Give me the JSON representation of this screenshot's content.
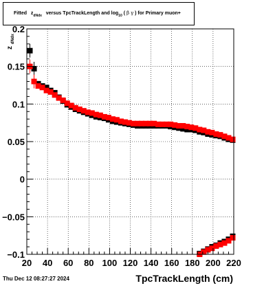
{
  "window": {
    "title_parts": {
      "prefix": "Fitted",
      "zvar": "z",
      "zsub": "dNdx",
      "middle": "versus TpcTrackLength and log",
      "logsub": "10",
      "lparen": "(",
      "beta": "β",
      "gamma": "γ",
      "rparen": ")",
      "suffix": "for Primary muon+"
    },
    "date": "Thu Dec 12 08:27:27 2024"
  },
  "chart_data": {
    "type": "scatter",
    "title": "Fitted z_dNdx versus TpcTrackLength and log_10 (β γ) for Primary muon+",
    "xlabel": "TpcTrackLength (cm)",
    "ylabel": "z",
    "ylabel_sub": "dNdx",
    "xlim": [
      20,
      220
    ],
    "ylim": [
      -0.1,
      0.2
    ],
    "x_ticks": [
      20,
      40,
      60,
      80,
      100,
      120,
      140,
      160,
      180,
      200,
      220
    ],
    "x_tick_labels": [
      "20",
      "40",
      "60",
      "80",
      "100",
      "120",
      "140",
      "160",
      "180",
      "200",
      "220"
    ],
    "y_ticks": [
      -0.1,
      -0.05,
      0,
      0.05,
      0.1,
      0.15,
      0.2
    ],
    "y_tick_labels": [
      "−0.1",
      "−0.05",
      "0",
      "0.05",
      "0.1",
      "0.15",
      "0.2"
    ],
    "grid": true,
    "series": [
      {
        "color": "#000000",
        "marker": "square",
        "points": [
          [
            23,
            0.171
          ],
          [
            27,
            0.147
          ],
          [
            31,
            0.127
          ],
          [
            35,
            0.124
          ],
          [
            39,
            0.122
          ],
          [
            43,
            0.118
          ],
          [
            47,
            0.115
          ],
          [
            51,
            0.109
          ],
          [
            55,
            0.104
          ],
          [
            59,
            0.099
          ],
          [
            63,
            0.096
          ],
          [
            67,
            0.093
          ],
          [
            71,
            0.091
          ],
          [
            75,
            0.089
          ],
          [
            79,
            0.087
          ],
          [
            83,
            0.085
          ],
          [
            87,
            0.083
          ],
          [
            91,
            0.082
          ],
          [
            95,
            0.081
          ],
          [
            99,
            0.079
          ],
          [
            103,
            0.077
          ],
          [
            107,
            0.076
          ],
          [
            111,
            0.075
          ],
          [
            115,
            0.074
          ],
          [
            119,
            0.073
          ],
          [
            123,
            0.072
          ],
          [
            127,
            0.071
          ],
          [
            131,
            0.071
          ],
          [
            135,
            0.071
          ],
          [
            139,
            0.071
          ],
          [
            143,
            0.071
          ],
          [
            147,
            0.071
          ],
          [
            151,
            0.071
          ],
          [
            155,
            0.071
          ],
          [
            159,
            0.07
          ],
          [
            163,
            0.069
          ],
          [
            167,
            0.068
          ],
          [
            171,
            0.067
          ],
          [
            175,
            0.066
          ],
          [
            179,
            0.066
          ],
          [
            183,
            0.065
          ],
          [
            187,
            0.063
          ],
          [
            191,
            0.062
          ],
          [
            195,
            0.06
          ],
          [
            199,
            0.059
          ],
          [
            203,
            0.058
          ],
          [
            207,
            0.057
          ],
          [
            211,
            0.055
          ],
          [
            215,
            0.053
          ],
          [
            219,
            0.052
          ],
          [
            187,
            -0.099
          ],
          [
            191,
            -0.096
          ],
          [
            195,
            -0.093
          ],
          [
            199,
            -0.09
          ],
          [
            203,
            -0.088
          ],
          [
            207,
            -0.085
          ],
          [
            211,
            -0.083
          ],
          [
            215,
            -0.08
          ],
          [
            219,
            -0.076
          ]
        ]
      },
      {
        "color": "#ff0000",
        "marker": "square",
        "points": [
          [
            23,
            0.15
          ],
          [
            27,
            0.13
          ],
          [
            31,
            0.124
          ],
          [
            35,
            0.122
          ],
          [
            39,
            0.118
          ],
          [
            43,
            0.116
          ],
          [
            47,
            0.112
          ],
          [
            51,
            0.108
          ],
          [
            55,
            0.105
          ],
          [
            59,
            0.101
          ],
          [
            63,
            0.098
          ],
          [
            67,
            0.095
          ],
          [
            71,
            0.093
          ],
          [
            75,
            0.091
          ],
          [
            79,
            0.089
          ],
          [
            83,
            0.088
          ],
          [
            87,
            0.086
          ],
          [
            91,
            0.085
          ],
          [
            95,
            0.083
          ],
          [
            99,
            0.082
          ],
          [
            103,
            0.08
          ],
          [
            107,
            0.079
          ],
          [
            111,
            0.077
          ],
          [
            115,
            0.076
          ],
          [
            119,
            0.075
          ],
          [
            123,
            0.074
          ],
          [
            127,
            0.074
          ],
          [
            131,
            0.074
          ],
          [
            135,
            0.074
          ],
          [
            139,
            0.074
          ],
          [
            143,
            0.074
          ],
          [
            147,
            0.073
          ],
          [
            151,
            0.073
          ],
          [
            155,
            0.073
          ],
          [
            159,
            0.073
          ],
          [
            163,
            0.072
          ],
          [
            167,
            0.071
          ],
          [
            171,
            0.071
          ],
          [
            175,
            0.07
          ],
          [
            179,
            0.069
          ],
          [
            183,
            0.068
          ],
          [
            187,
            0.066
          ],
          [
            191,
            0.065
          ],
          [
            195,
            0.063
          ],
          [
            199,
            0.062
          ],
          [
            203,
            0.06
          ],
          [
            207,
            0.059
          ],
          [
            211,
            0.057
          ],
          [
            215,
            0.055
          ],
          [
            219,
            0.053
          ],
          [
            187,
            -0.1
          ],
          [
            191,
            -0.097
          ],
          [
            195,
            -0.094
          ],
          [
            199,
            -0.092
          ],
          [
            203,
            -0.089
          ],
          [
            207,
            -0.087
          ],
          [
            211,
            -0.085
          ],
          [
            215,
            -0.082
          ],
          [
            219,
            -0.078
          ]
        ]
      }
    ]
  }
}
